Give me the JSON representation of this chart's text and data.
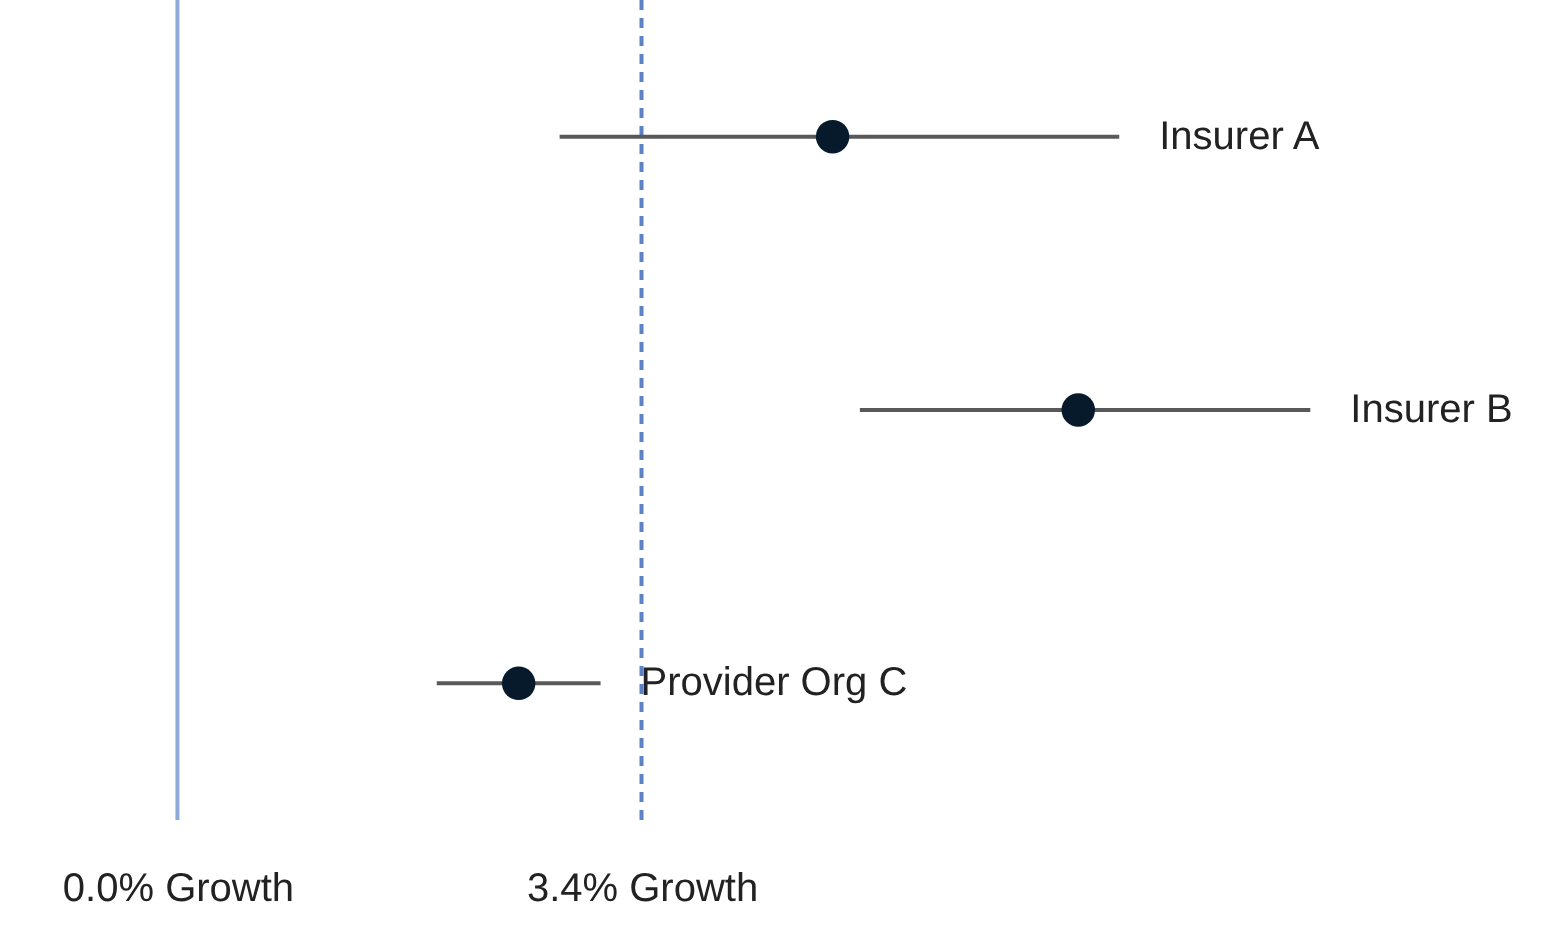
{
  "chart_data": {
    "type": "scatter",
    "orientation": "horizontal",
    "categories": [
      "Insurer A",
      "Insurer B",
      "Provider Org C"
    ],
    "values": [
      4.8,
      6.6,
      2.5
    ],
    "errors": [
      [
        2.8,
        6.9
      ],
      [
        5.0,
        8.3
      ],
      [
        1.9,
        3.1
      ]
    ],
    "color": "#061a2b",
    "marker": "circle",
    "xlim": [
      -1.3,
      10.1
    ],
    "xticks": [
      {
        "value": 0,
        "label": "0.0% Growth"
      },
      {
        "value": 3.4,
        "label": "3.4% Growth"
      }
    ],
    "ref_lines": [
      {
        "axis": "x",
        "value": 0,
        "color": "#8eaadb",
        "line_style": "solid"
      },
      {
        "axis": "x",
        "value": 3.4,
        "color": "#5b82c4",
        "line_style": "dashed"
      }
    ],
    "grid": false
  }
}
